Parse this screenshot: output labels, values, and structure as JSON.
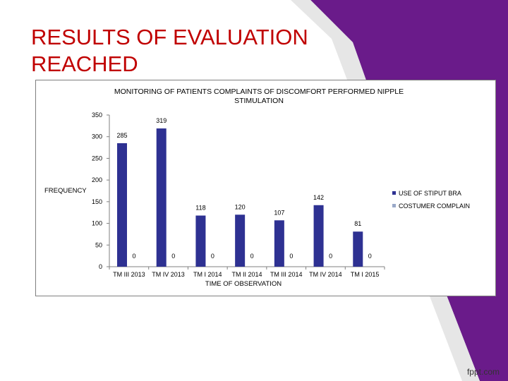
{
  "slide": {
    "title_line1": "RESULTS OF  EVALUATION",
    "title_line2": "REACHED",
    "title_color": "#c00000",
    "background_accent": "#6a1b8a",
    "footer_logo": "fppt.com"
  },
  "chart_data": {
    "type": "bar",
    "title_line1": "MONITORING OF PATIENTS COMPLAINTS OF DISCOMFORT PERFORMED  NIPPLE",
    "title_line2": "STIMULATION",
    "xlabel": "TIME OF OBSERVATION",
    "ylabel": "FREQUENCY",
    "ylim": [
      0,
      350
    ],
    "yticks": [
      0,
      50,
      100,
      150,
      200,
      250,
      300,
      350
    ],
    "grid": false,
    "legend_position": "right",
    "categories": [
      "TM III 2013",
      "TM IV 2013",
      "TM I 2014",
      "TM II 2014",
      "TM III 2014",
      "TM IV 2014",
      "TM I 2015"
    ],
    "series": [
      {
        "name": "USE OF STIPUT BRA",
        "color": "#2e3192",
        "values": [
          285,
          319,
          118,
          120,
          107,
          142,
          81
        ]
      },
      {
        "name": "COSTUMER COMPLAIN",
        "color": "#9aa8c8",
        "values": [
          0,
          0,
          0,
          0,
          0,
          0,
          0
        ]
      }
    ]
  }
}
